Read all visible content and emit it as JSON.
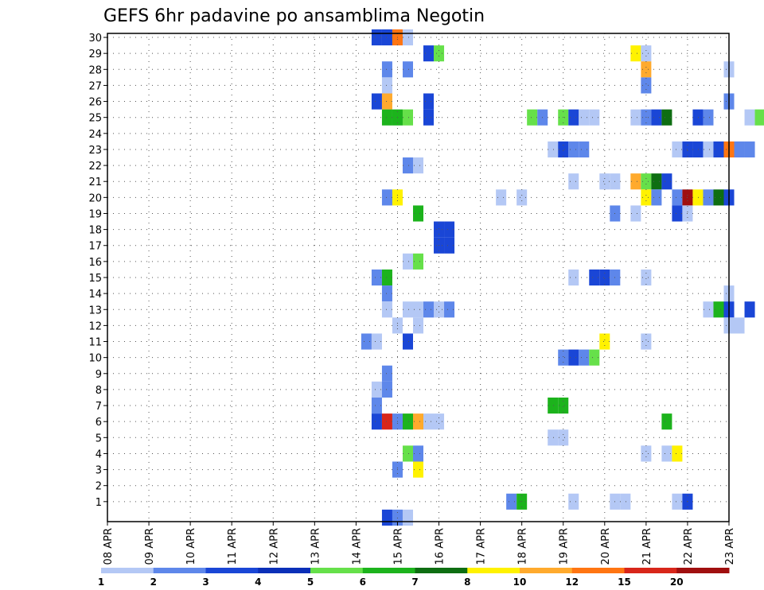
{
  "chart_data": {
    "type": "heatmap",
    "title": "GEFS 6hr padavine po ansamblima Negotin",
    "xlabel": "",
    "ylabel": "",
    "x_ticks": [
      "08 APR",
      "09 APR",
      "10 APR",
      "11 APR",
      "12 APR",
      "13 APR",
      "14 APR",
      "15 APR",
      "16 APR",
      "17 APR",
      "18 APR",
      "19 APR",
      "20 APR",
      "21 APR",
      "22 APR",
      "23 APR"
    ],
    "y_range": [
      0,
      30
    ],
    "y_ticks": [
      1,
      2,
      3,
      4,
      5,
      6,
      7,
      8,
      9,
      10,
      11,
      12,
      13,
      14,
      15,
      16,
      17,
      18,
      19,
      20,
      21,
      22,
      23,
      24,
      25,
      26,
      27,
      28,
      29,
      30
    ],
    "x_range": [
      "08 APR 00Z",
      "23 APR 00Z"
    ],
    "step_hours": 6,
    "grid": true,
    "colorbar": {
      "labels": [
        "1",
        "2",
        "3",
        "4",
        "5",
        "6",
        "7",
        "8",
        "10",
        "12",
        "15",
        "20"
      ],
      "colors": [
        "#b4c8f5",
        "#5e87ea",
        "#1a46d6",
        "#0b2fb8",
        "#66e04a",
        "#1cb31c",
        "#0e6e12",
        "#fff200",
        "#ffaa2d",
        "#ff7512",
        "#d8261a",
        "#a00f0f",
        "#5a0000"
      ],
      "placement": "bottom"
    },
    "cells": [
      {
        "m": 30,
        "t": "14 APR 12Z",
        "v": 3
      },
      {
        "m": 30,
        "t": "14 APR 18Z",
        "v": 3
      },
      {
        "m": 30,
        "t": "15 APR 00Z",
        "v": 12
      },
      {
        "m": 30,
        "t": "15 APR 06Z",
        "v": 1
      },
      {
        "m": 29,
        "t": "15 APR 18Z",
        "v": 3
      },
      {
        "m": 29,
        "t": "16 APR 00Z",
        "v": 5
      },
      {
        "m": 29,
        "t": "20 APR 18Z",
        "v": 8
      },
      {
        "m": 29,
        "t": "21 APR 00Z",
        "v": 1
      },
      {
        "m": 28,
        "t": "14 APR 18Z",
        "v": 2
      },
      {
        "m": 28,
        "t": "15 APR 06Z",
        "v": 2
      },
      {
        "m": 28,
        "t": "21 APR 00Z",
        "v": 10
      },
      {
        "m": 28,
        "t": "23 APR 00Z",
        "v": 1
      },
      {
        "m": 27,
        "t": "14 APR 18Z",
        "v": 1
      },
      {
        "m": 27,
        "t": "21 APR 00Z",
        "v": 2
      },
      {
        "m": 26,
        "t": "14 APR 12Z",
        "v": 3
      },
      {
        "m": 26,
        "t": "14 APR 18Z",
        "v": 10
      },
      {
        "m": 26,
        "t": "15 APR 18Z",
        "v": 3
      },
      {
        "m": 26,
        "t": "23 APR 00Z",
        "v": 2
      },
      {
        "m": 25,
        "t": "14 APR 18Z",
        "v": 6
      },
      {
        "m": 25,
        "t": "15 APR 00Z",
        "v": 6
      },
      {
        "m": 25,
        "t": "15 APR 06Z",
        "v": 5
      },
      {
        "m": 25,
        "t": "15 APR 18Z",
        "v": 3
      },
      {
        "m": 25,
        "t": "18 APR 06Z",
        "v": 5
      },
      {
        "m": 25,
        "t": "18 APR 12Z",
        "v": 2
      },
      {
        "m": 25,
        "t": "19 APR 00Z",
        "v": 5
      },
      {
        "m": 25,
        "t": "19 APR 06Z",
        "v": 3
      },
      {
        "m": 25,
        "t": "19 APR 12Z",
        "v": 1
      },
      {
        "m": 25,
        "t": "19 APR 18Z",
        "v": 1
      },
      {
        "m": 25,
        "t": "20 APR 18Z",
        "v": 1
      },
      {
        "m": 25,
        "t": "21 APR 00Z",
        "v": 2
      },
      {
        "m": 25,
        "t": "21 APR 06Z",
        "v": 3
      },
      {
        "m": 25,
        "t": "21 APR 12Z",
        "v": 7
      },
      {
        "m": 25,
        "t": "22 APR 06Z",
        "v": 3
      },
      {
        "m": 25,
        "t": "22 APR 12Z",
        "v": 2
      },
      {
        "m": 25,
        "t": "23 APR 12Z",
        "v": 1
      },
      {
        "m": 25,
        "t": "23 APR 18Z",
        "v": 5
      },
      {
        "m": 23,
        "t": "18 APR 18Z",
        "v": 1
      },
      {
        "m": 23,
        "t": "19 APR 00Z",
        "v": 3
      },
      {
        "m": 23,
        "t": "19 APR 06Z",
        "v": 2
      },
      {
        "m": 23,
        "t": "19 APR 12Z",
        "v": 2
      },
      {
        "m": 23,
        "t": "21 APR 18Z",
        "v": 1
      },
      {
        "m": 23,
        "t": "22 APR 00Z",
        "v": 3
      },
      {
        "m": 23,
        "t": "22 APR 06Z",
        "v": 3
      },
      {
        "m": 23,
        "t": "22 APR 12Z",
        "v": 1
      },
      {
        "m": 23,
        "t": "22 APR 18Z",
        "v": 3
      },
      {
        "m": 23,
        "t": "23 APR 00Z",
        "v": 12
      },
      {
        "m": 23,
        "t": "23 APR 06Z",
        "v": 2
      },
      {
        "m": 23,
        "t": "23 APR 12Z",
        "v": 2
      },
      {
        "m": 22,
        "t": "15 APR 06Z",
        "v": 2
      },
      {
        "m": 22,
        "t": "15 APR 12Z",
        "v": 1
      },
      {
        "m": 21,
        "t": "19 APR 06Z",
        "v": 1
      },
      {
        "m": 21,
        "t": "20 APR 00Z",
        "v": 1
      },
      {
        "m": 21,
        "t": "20 APR 06Z",
        "v": 1
      },
      {
        "m": 21,
        "t": "20 APR 18Z",
        "v": 10
      },
      {
        "m": 21,
        "t": "21 APR 00Z",
        "v": 5
      },
      {
        "m": 21,
        "t": "21 APR 06Z",
        "v": 7
      },
      {
        "m": 21,
        "t": "21 APR 12Z",
        "v": 3
      },
      {
        "m": 20,
        "t": "14 APR 18Z",
        "v": 2
      },
      {
        "m": 20,
        "t": "15 APR 00Z",
        "v": 8
      },
      {
        "m": 20,
        "t": "17 APR 12Z",
        "v": 1
      },
      {
        "m": 20,
        "t": "18 APR 00Z",
        "v": 1
      },
      {
        "m": 20,
        "t": "21 APR 00Z",
        "v": 8
      },
      {
        "m": 20,
        "t": "21 APR 06Z",
        "v": 2
      },
      {
        "m": 20,
        "t": "21 APR 18Z",
        "v": 2
      },
      {
        "m": 20,
        "t": "22 APR 00Z",
        "v": 20
      },
      {
        "m": 20,
        "t": "22 APR 06Z",
        "v": 8
      },
      {
        "m": 20,
        "t": "22 APR 12Z",
        "v": 2
      },
      {
        "m": 20,
        "t": "22 APR 18Z",
        "v": 7
      },
      {
        "m": 20,
        "t": "23 APR 00Z",
        "v": 3
      },
      {
        "m": 19,
        "t": "15 APR 12Z",
        "v": 6
      },
      {
        "m": 19,
        "t": "20 APR 06Z",
        "v": 2
      },
      {
        "m": 19,
        "t": "20 APR 18Z",
        "v": 1
      },
      {
        "m": 19,
        "t": "21 APR 18Z",
        "v": 3
      },
      {
        "m": 19,
        "t": "22 APR 00Z",
        "v": 1
      },
      {
        "m": 18,
        "t": "16 APR 00Z",
        "v": 3
      },
      {
        "m": 18,
        "t": "16 APR 06Z",
        "v": 3
      },
      {
        "m": 17,
        "t": "16 APR 00Z",
        "v": 3
      },
      {
        "m": 17,
        "t": "16 APR 06Z",
        "v": 3
      },
      {
        "m": 16,
        "t": "15 APR 06Z",
        "v": 1
      },
      {
        "m": 16,
        "t": "15 APR 12Z",
        "v": 5
      },
      {
        "m": 15,
        "t": "14 APR 12Z",
        "v": 2
      },
      {
        "m": 15,
        "t": "14 APR 18Z",
        "v": 6
      },
      {
        "m": 15,
        "t": "19 APR 06Z",
        "v": 1
      },
      {
        "m": 15,
        "t": "19 APR 18Z",
        "v": 3
      },
      {
        "m": 15,
        "t": "20 APR 00Z",
        "v": 3
      },
      {
        "m": 15,
        "t": "20 APR 06Z",
        "v": 2
      },
      {
        "m": 15,
        "t": "21 APR 00Z",
        "v": 1
      },
      {
        "m": 14,
        "t": "14 APR 18Z",
        "v": 2
      },
      {
        "m": 14,
        "t": "23 APR 00Z",
        "v": 1
      },
      {
        "m": 13,
        "t": "14 APR 18Z",
        "v": 1
      },
      {
        "m": 13,
        "t": "15 APR 06Z",
        "v": 1
      },
      {
        "m": 13,
        "t": "15 APR 12Z",
        "v": 1
      },
      {
        "m": 13,
        "t": "15 APR 18Z",
        "v": 2
      },
      {
        "m": 13,
        "t": "16 APR 00Z",
        "v": 1
      },
      {
        "m": 13,
        "t": "16 APR 06Z",
        "v": 2
      },
      {
        "m": 13,
        "t": "22 APR 12Z",
        "v": 1
      },
      {
        "m": 13,
        "t": "22 APR 18Z",
        "v": 6
      },
      {
        "m": 13,
        "t": "23 APR 00Z",
        "v": 3
      },
      {
        "m": 13,
        "t": "23 APR 12Z",
        "v": 3
      },
      {
        "m": 12,
        "t": "15 APR 00Z",
        "v": 1
      },
      {
        "m": 12,
        "t": "15 APR 12Z",
        "v": 1
      },
      {
        "m": 12,
        "t": "23 APR 00Z",
        "v": 1
      },
      {
        "m": 12,
        "t": "23 APR 06Z",
        "v": 1
      },
      {
        "m": 11,
        "t": "14 APR 06Z",
        "v": 2
      },
      {
        "m": 11,
        "t": "14 APR 12Z",
        "v": 1
      },
      {
        "m": 11,
        "t": "15 APR 06Z",
        "v": 3
      },
      {
        "m": 11,
        "t": "20 APR 00Z",
        "v": 8
      },
      {
        "m": 11,
        "t": "21 APR 00Z",
        "v": 1
      },
      {
        "m": 10,
        "t": "19 APR 00Z",
        "v": 2
      },
      {
        "m": 10,
        "t": "19 APR 06Z",
        "v": 3
      },
      {
        "m": 10,
        "t": "19 APR 12Z",
        "v": 2
      },
      {
        "m": 10,
        "t": "19 APR 18Z",
        "v": 5
      },
      {
        "m": 9,
        "t": "14 APR 18Z",
        "v": 2
      },
      {
        "m": 8,
        "t": "14 APR 12Z",
        "v": 1
      },
      {
        "m": 8,
        "t": "14 APR 18Z",
        "v": 2
      },
      {
        "m": 7,
        "t": "14 APR 12Z",
        "v": 2
      },
      {
        "m": 7,
        "t": "18 APR 18Z",
        "v": 6
      },
      {
        "m": 7,
        "t": "19 APR 00Z",
        "v": 6
      },
      {
        "m": 6,
        "t": "14 APR 12Z",
        "v": 3
      },
      {
        "m": 6,
        "t": "14 APR 18Z",
        "v": 15
      },
      {
        "m": 6,
        "t": "15 APR 00Z",
        "v": 2
      },
      {
        "m": 6,
        "t": "15 APR 06Z",
        "v": 6
      },
      {
        "m": 6,
        "t": "15 APR 12Z",
        "v": 10
      },
      {
        "m": 6,
        "t": "15 APR 18Z",
        "v": 1
      },
      {
        "m": 6,
        "t": "16 APR 00Z",
        "v": 1
      },
      {
        "m": 6,
        "t": "21 APR 12Z",
        "v": 6
      },
      {
        "m": 5,
        "t": "18 APR 18Z",
        "v": 1
      },
      {
        "m": 5,
        "t": "19 APR 00Z",
        "v": 1
      },
      {
        "m": 4,
        "t": "15 APR 06Z",
        "v": 5
      },
      {
        "m": 4,
        "t": "15 APR 12Z",
        "v": 2
      },
      {
        "m": 4,
        "t": "21 APR 00Z",
        "v": 1
      },
      {
        "m": 4,
        "t": "21 APR 12Z",
        "v": 1
      },
      {
        "m": 4,
        "t": "21 APR 18Z",
        "v": 8
      },
      {
        "m": 3,
        "t": "15 APR 00Z",
        "v": 2
      },
      {
        "m": 3,
        "t": "15 APR 12Z",
        "v": 8
      },
      {
        "m": 1,
        "t": "17 APR 18Z",
        "v": 2
      },
      {
        "m": 1,
        "t": "18 APR 00Z",
        "v": 6
      },
      {
        "m": 1,
        "t": "19 APR 06Z",
        "v": 1
      },
      {
        "m": 1,
        "t": "20 APR 06Z",
        "v": 1
      },
      {
        "m": 1,
        "t": "20 APR 12Z",
        "v": 1
      },
      {
        "m": 1,
        "t": "21 APR 18Z",
        "v": 1
      },
      {
        "m": 1,
        "t": "22 APR 00Z",
        "v": 3
      },
      {
        "m": 0,
        "t": "14 APR 18Z",
        "v": 3
      },
      {
        "m": 0,
        "t": "15 APR 00Z",
        "v": 2
      },
      {
        "m": 0,
        "t": "15 APR 06Z",
        "v": 1
      }
    ]
  }
}
